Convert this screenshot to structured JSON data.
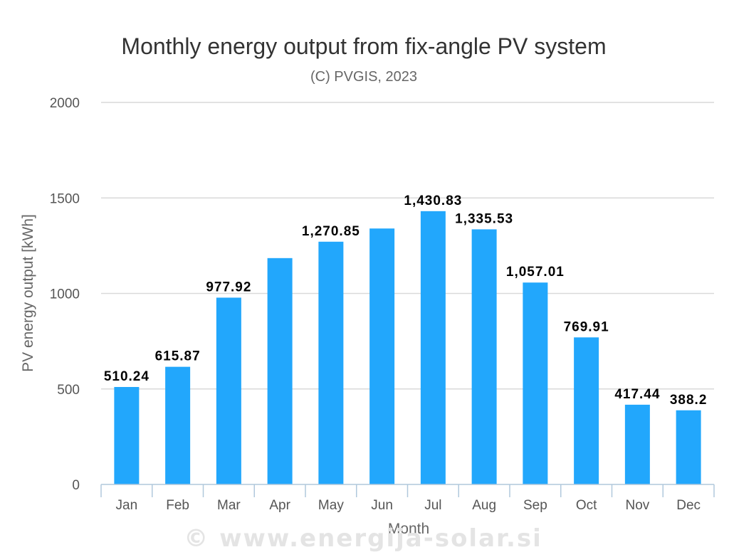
{
  "chart_data": {
    "type": "bar",
    "title": "Monthly energy output from fix-angle PV system",
    "subtitle": "(C) PVGIS, 2023",
    "xlabel": "Month",
    "ylabel": "PV energy output [kWh]",
    "ylim": [
      0,
      2000
    ],
    "yticks": [
      0,
      500,
      1000,
      1500,
      2000
    ],
    "grid": true,
    "color": "#22a7fc",
    "categories": [
      "Jan",
      "Feb",
      "Mar",
      "Apr",
      "May",
      "Jun",
      "Jul",
      "Aug",
      "Sep",
      "Oct",
      "Nov",
      "Dec"
    ],
    "values": [
      510.24,
      615.87,
      977.92,
      1185,
      1270.85,
      1340,
      1430.83,
      1335.53,
      1057.01,
      769.91,
      417.44,
      388.2
    ],
    "data_labels": [
      "510.24",
      "615.87",
      "977.92",
      null,
      "1,270.85",
      null,
      "1,430.83",
      "1,335.53",
      "1,057.01",
      "769.91",
      "417.44",
      "388.2"
    ]
  },
  "watermark": "© www.energija-solar.si"
}
